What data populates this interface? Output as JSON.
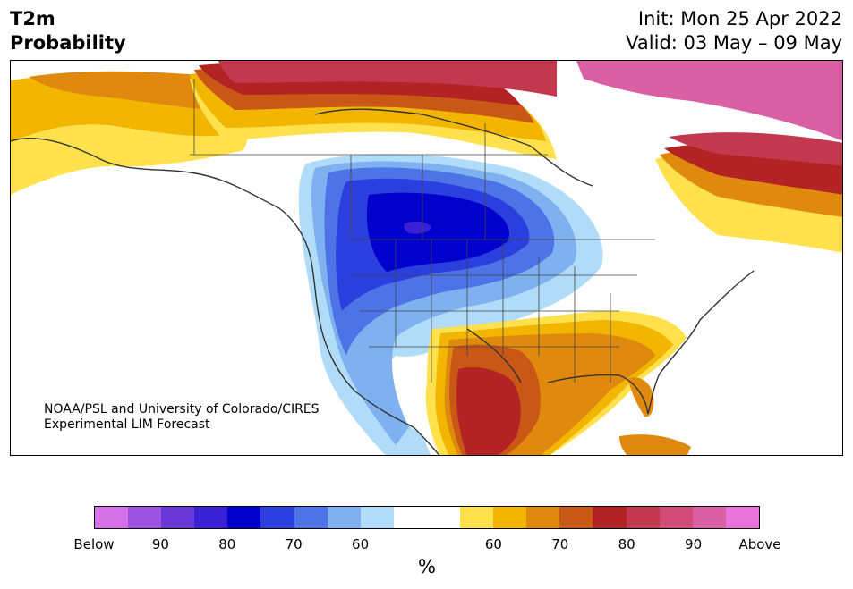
{
  "title": {
    "line1": "T2m",
    "line2": "Probability"
  },
  "init": {
    "line1": "Init: Mon 25 Apr 2022",
    "line2": "Valid: 03 May – 09 May"
  },
  "credit": {
    "line1": "NOAA/PSL and University of Colorado/CIRES",
    "line2": "Experimental LIM Forecast"
  },
  "legend": {
    "unit": "%",
    "labels": [
      "Below",
      "90",
      "80",
      "70",
      "60",
      "60",
      "70",
      "80",
      "90",
      "Above"
    ],
    "colors": [
      "#d572e8",
      "#9e52e0",
      "#6a38d8",
      "#3a1fd4",
      "#0000cc",
      "#2a3fdd",
      "#4d73e6",
      "#7fb1f0",
      "#b0dcfa",
      "#ffffff",
      "#ffffff",
      "#ffe14d",
      "#f2b500",
      "#df8a0e",
      "#c95817",
      "#b32323",
      "#c2384e",
      "#d24b78",
      "#da5fa4",
      "#e873da"
    ]
  },
  "palette": {
    "land_outline": "#333333",
    "state_border": "#444444",
    "below_core": "#0000cc",
    "above_core": "#b32323"
  }
}
